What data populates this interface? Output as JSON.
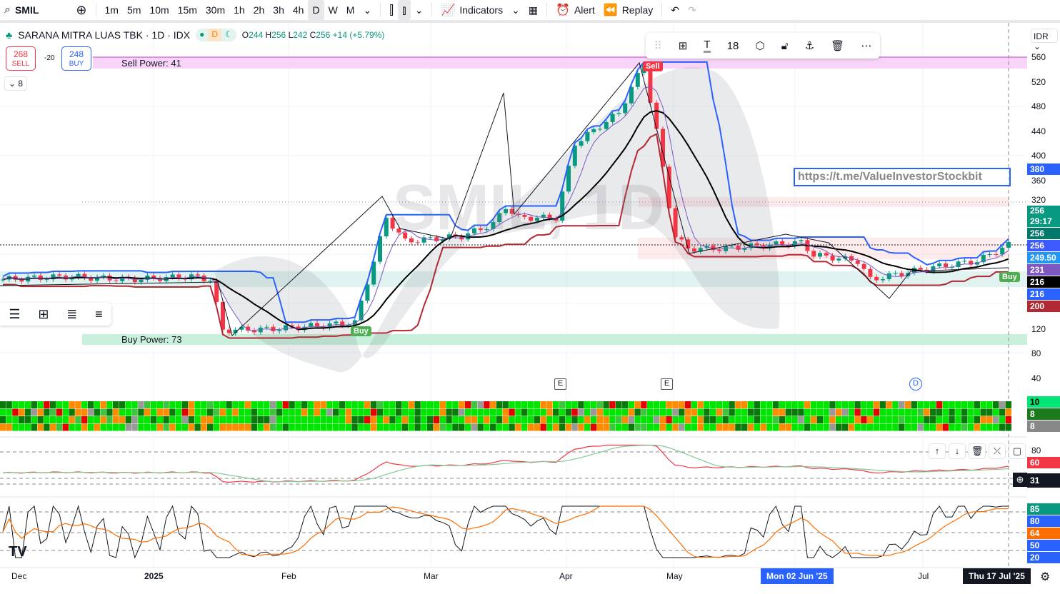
{
  "toolbar": {
    "symbol": "SMIL",
    "intervals": [
      "1m",
      "5m",
      "10m",
      "15m",
      "30m",
      "1h",
      "2h",
      "3h",
      "4h",
      "D",
      "W",
      "M"
    ],
    "active_interval": "D",
    "indicators": "Indicators",
    "alert": "Alert",
    "replay": "Replay"
  },
  "legend": {
    "title": "SARANA MITRA LUAS TBK · 1D · IDX",
    "status_d": "D",
    "o_label": "O",
    "o": "244",
    "h_label": "H",
    "h": "256",
    "l_label": "L",
    "l": "242",
    "c_label": "C",
    "c": "256",
    "change": "+14 (+5.79%)"
  },
  "trade": {
    "sell_price": "268",
    "sell_label": "SELL",
    "spread": "-20",
    "buy_price": "248",
    "buy_label": "BUY",
    "collapsed_count": "8"
  },
  "annotations": {
    "sell_power": "Sell Power: 41",
    "buy_power": "Buy Power: 73",
    "watermark": "SMIL, 1D",
    "link_text": "https://t.me/ValueInvestorStockbit",
    "sell_signal": "Sell",
    "buy_signal_1": "Buy",
    "buy_signal_2": "Buy",
    "event_e1": "E",
    "event_e2": "E",
    "event_d": "D"
  },
  "drawing_toolbar": {
    "font_size": "18"
  },
  "price_axis": {
    "currency": "IDR",
    "ticks": [
      "560",
      "520",
      "480",
      "440",
      "400",
      "360",
      "320",
      "120",
      "80",
      "40"
    ],
    "tags": [
      {
        "v": "380",
        "c": "#2962ff"
      },
      {
        "v": "256",
        "c": "#089981",
        "sub": "29:17"
      },
      {
        "v": "256",
        "c": "#00796b"
      },
      {
        "v": "256",
        "c": "#3d5afe"
      },
      {
        "v": "249.50",
        "c": "#2196f3"
      },
      {
        "v": "231",
        "c": "#7e57c2"
      },
      {
        "v": "216",
        "c": "#000000"
      },
      {
        "v": "216",
        "c": "#2962ff"
      },
      {
        "v": "200",
        "c": "#b22833"
      }
    ]
  },
  "heatmap_axis": [
    {
      "v": "10",
      "c": "#00e676"
    },
    {
      "v": "8",
      "c": "#1b7a1b"
    },
    {
      "v": "8",
      "c": "#888888"
    }
  ],
  "rsi_axis": {
    "tick": "80",
    "tags": [
      {
        "v": "60",
        "c": "#f23645"
      },
      {
        "v": "31",
        "c": "#131722"
      }
    ]
  },
  "stoch_axis": [
    {
      "v": "85",
      "c": "#089981"
    },
    {
      "v": "80",
      "c": "#2962ff"
    },
    {
      "v": "64",
      "c": "#ff6d00"
    },
    {
      "v": "50",
      "c": "#2962ff"
    },
    {
      "v": "20",
      "c": "#2962ff"
    }
  ],
  "time_axis": {
    "labels": [
      "Dec",
      "2025",
      "Feb",
      "Mar",
      "Apr",
      "May",
      "Jul"
    ],
    "crosshair_date": "Mon 02 Jun '25",
    "last_date": "Thu 17 Jul '25"
  },
  "chart_data": {
    "type": "candlestick",
    "price_range": [
      40,
      560
    ],
    "close_path": [
      [
        0,
        200
      ],
      [
        10,
        205
      ],
      [
        20,
        200
      ],
      [
        30,
        205
      ],
      [
        33,
        200
      ],
      [
        35,
        118
      ],
      [
        43,
        120
      ],
      [
        56,
        130
      ],
      [
        59,
        230
      ],
      [
        61,
        300
      ],
      [
        64,
        262
      ],
      [
        73,
        270
      ],
      [
        78,
        290
      ],
      [
        80,
        318
      ],
      [
        82,
        300
      ],
      [
        88,
        300
      ],
      [
        91,
        420
      ],
      [
        98,
        470
      ],
      [
        102,
        550
      ],
      [
        103,
        490
      ],
      [
        104,
        440
      ],
      [
        106,
        320
      ],
      [
        107,
        270
      ],
      [
        109,
        250
      ],
      [
        114,
        250
      ],
      [
        127,
        260
      ],
      [
        129,
        240
      ],
      [
        136,
        230
      ],
      [
        138,
        200
      ],
      [
        143,
        210
      ],
      [
        148,
        220
      ],
      [
        155,
        230
      ],
      [
        160,
        256
      ]
    ],
    "heatmap_colors": [
      "#00e600",
      "#0a7a0a",
      "#ff8c00",
      "#e60000",
      "#999999",
      "#3ec43e"
    ]
  }
}
